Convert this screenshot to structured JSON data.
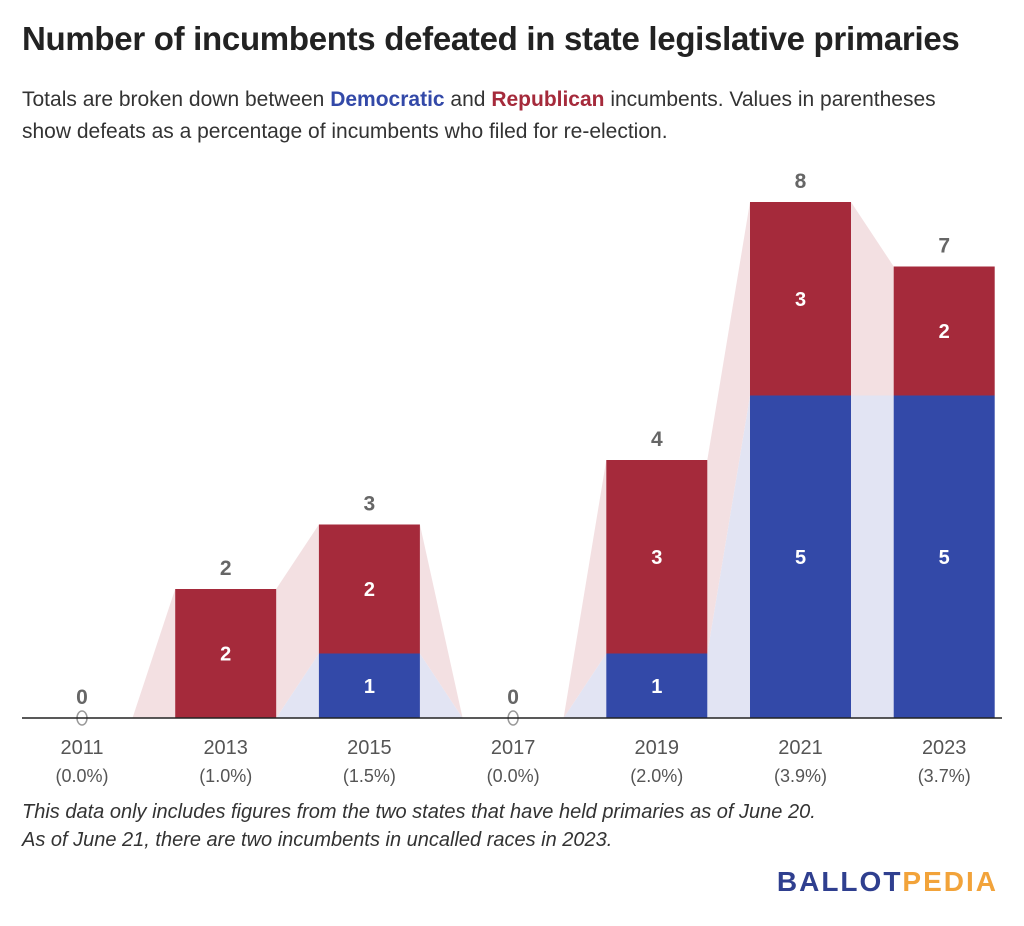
{
  "header": {
    "title": "Number of incumbents defeated in state legislative primaries",
    "subtitle_part1": "Totals are broken down between ",
    "subtitle_dem": "Democratic",
    "subtitle_part2": " and ",
    "subtitle_rep": "Republican",
    "subtitle_part3": " incumbents. Values in parentheses show defeats as a percentage of incumbents who filed for re-election."
  },
  "colors": {
    "democratic": "#3349a8",
    "republican": "#a52a3b",
    "democratic_band": "#e2e4f3",
    "republican_band": "#f3e0e2",
    "total_label": "#666666",
    "axis_label": "#555555"
  },
  "chart_data": {
    "type": "bar",
    "stacked": true,
    "categories": [
      "2011",
      "2013",
      "2015",
      "2017",
      "2019",
      "2021",
      "2023"
    ],
    "category_sublabels": [
      "(0.0%)",
      "(1.0%)",
      "(1.5%)",
      "(0.0%)",
      "(2.0%)",
      "(3.9%)",
      "(3.7%)"
    ],
    "series": [
      {
        "name": "Democratic",
        "values": [
          0,
          0,
          1,
          0,
          1,
          5,
          5
        ]
      },
      {
        "name": "Republican",
        "values": [
          0,
          2,
          2,
          0,
          3,
          3,
          2
        ]
      }
    ],
    "totals": [
      0,
      2,
      3,
      0,
      4,
      8,
      7
    ],
    "ylim": [
      0,
      8
    ],
    "grid": false,
    "connector_bands": true
  },
  "footer": {
    "note_line1": "This data only includes figures from the two states that have held primaries as of June 20.",
    "note_line2": "As of June 21, there are two incumbents in uncalled races in 2023.",
    "logo_part1": "BALLOT",
    "logo_part2": "PEDIA"
  }
}
